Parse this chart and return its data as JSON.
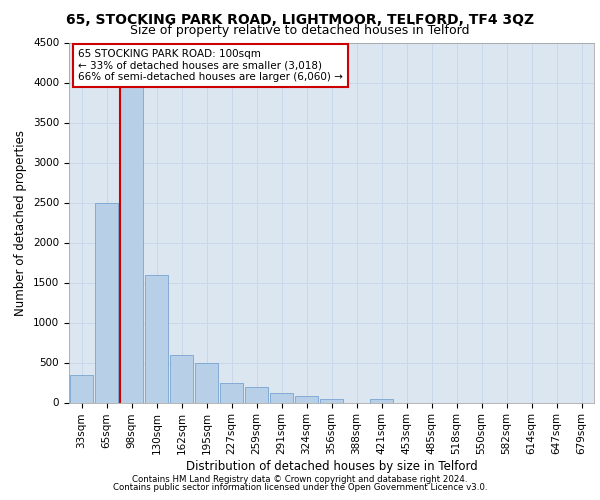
{
  "title": "65, STOCKING PARK ROAD, LIGHTMOOR, TELFORD, TF4 3QZ",
  "subtitle": "Size of property relative to detached houses in Telford",
  "xlabel": "Distribution of detached houses by size in Telford",
  "ylabel": "Number of detached properties",
  "categories": [
    "33sqm",
    "65sqm",
    "98sqm",
    "130sqm",
    "162sqm",
    "195sqm",
    "227sqm",
    "259sqm",
    "291sqm",
    "324sqm",
    "356sqm",
    "388sqm",
    "421sqm",
    "453sqm",
    "485sqm",
    "518sqm",
    "550sqm",
    "582sqm",
    "614sqm",
    "647sqm",
    "679sqm"
  ],
  "values": [
    350,
    2500,
    4000,
    1600,
    600,
    500,
    250,
    200,
    120,
    80,
    50,
    0,
    50,
    0,
    0,
    0,
    0,
    0,
    0,
    0,
    0
  ],
  "bar_color": "#b8cfe8",
  "bar_edge_color": "#6699cc",
  "highlight_line_color": "#cc0000",
  "highlight_line_index": 2,
  "annotation_text": "65 STOCKING PARK ROAD: 100sqm\n← 33% of detached houses are smaller (3,018)\n66% of semi-detached houses are larger (6,060) →",
  "annotation_box_color": "#ffffff",
  "annotation_box_edge_color": "#cc0000",
  "ylim": [
    0,
    4500
  ],
  "yticks": [
    0,
    500,
    1000,
    1500,
    2000,
    2500,
    3000,
    3500,
    4000,
    4500
  ],
  "grid_color": "#c8d8ea",
  "background_color": "#dce6f1",
  "footer_line1": "Contains HM Land Registry data © Crown copyright and database right 2024.",
  "footer_line2": "Contains public sector information licensed under the Open Government Licence v3.0.",
  "title_fontsize": 10,
  "subtitle_fontsize": 9,
  "xlabel_fontsize": 8.5,
  "ylabel_fontsize": 8.5,
  "tick_fontsize": 7.5,
  "annot_fontsize": 7.5
}
